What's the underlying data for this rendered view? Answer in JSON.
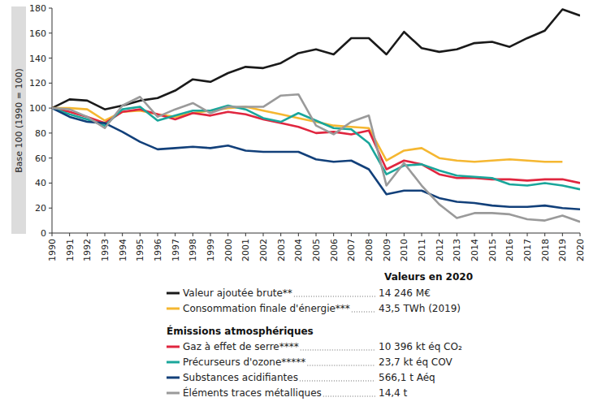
{
  "chart_data": {
    "type": "line",
    "y_label": "Base 100 (1990 = 100)",
    "legend_title": "Valeurs en 2020",
    "x": [
      1990,
      1991,
      1992,
      1993,
      1994,
      1995,
      1996,
      1997,
      1998,
      1999,
      2000,
      2001,
      2002,
      2003,
      2004,
      2005,
      2006,
      2007,
      2008,
      2009,
      2010,
      2011,
      2012,
      2013,
      2014,
      2015,
      2016,
      2017,
      2018,
      2019,
      2020
    ],
    "xlim": [
      1990,
      2020
    ],
    "xticks": [
      1990,
      1991,
      1992,
      1993,
      1994,
      1995,
      1996,
      1997,
      1998,
      1999,
      2000,
      2001,
      2002,
      2003,
      2004,
      2005,
      2006,
      2007,
      2008,
      2009,
      2010,
      2011,
      2012,
      2013,
      2014,
      2015,
      2016,
      2017,
      2018,
      2019,
      2020
    ],
    "ylim": [
      0,
      180
    ],
    "yticks": [
      0,
      20,
      40,
      60,
      80,
      100,
      120,
      140,
      160,
      180
    ],
    "grid": false,
    "legend": "bottom",
    "series": [
      {
        "name": "Valeur ajoutée brute**",
        "legend_value": "14 246 M€",
        "color": "#1a1a1a",
        "values": [
          100,
          107,
          106,
          99,
          102,
          106,
          108,
          114,
          123,
          121,
          128,
          133,
          132,
          136,
          144,
          147,
          143,
          156,
          156,
          143,
          161,
          148,
          145,
          147,
          152,
          153,
          149,
          156,
          162,
          179,
          174
        ]
      },
      {
        "name": "Consommation finale d'énergie***",
        "legend_value": "43,5 TWh (2019)",
        "color": "#f5b731",
        "values": [
          100,
          100,
          99,
          90,
          97,
          98,
          95,
          93,
          96,
          98,
          100,
          101,
          98,
          95,
          92,
          89,
          86,
          85,
          84,
          58,
          66,
          68,
          60,
          58,
          57,
          58,
          59,
          58,
          57,
          57,
          null
        ]
      },
      {
        "name": "Gaz à effet de serre****",
        "legend_value": "10 396 kt éq CO₂",
        "color": "#e0263f",
        "group": "Émissions atmosphériques",
        "values": [
          100,
          97,
          93,
          88,
          97,
          99,
          95,
          91,
          96,
          94,
          97,
          95,
          91,
          88,
          85,
          80,
          81,
          79,
          82,
          51,
          58,
          55,
          47,
          44,
          44,
          43,
          43,
          42,
          43,
          43,
          40
        ]
      },
      {
        "name": "Précurseurs d'ozone*****",
        "legend_value": "23,7 kt éq COV",
        "color": "#1aa69b",
        "group": "Émissions atmosphériques",
        "values": [
          100,
          95,
          91,
          86,
          99,
          101,
          90,
          94,
          98,
          98,
          102,
          99,
          92,
          89,
          96,
          90,
          84,
          83,
          72,
          47,
          54,
          55,
          50,
          46,
          45,
          44,
          39,
          38,
          40,
          38,
          35
        ]
      },
      {
        "name": "Substances acidifiantes",
        "legend_value": "566,1 t Aéq",
        "color": "#12407a",
        "group": "Émissions atmosphériques",
        "values": [
          100,
          93,
          89,
          88,
          81,
          73,
          67,
          68,
          69,
          68,
          70,
          66,
          65,
          65,
          65,
          59,
          57,
          58,
          51,
          31,
          34,
          34,
          28,
          25,
          24,
          22,
          21,
          21,
          22,
          20,
          19
        ]
      },
      {
        "name": "Éléments traces métalliques",
        "legend_value": "14,4 t",
        "color": "#9a9a9a",
        "group": "Émissions atmosphériques",
        "values": [
          100,
          99,
          93,
          84,
          102,
          109,
          93,
          99,
          104,
          96,
          101,
          101,
          101,
          110,
          111,
          86,
          79,
          89,
          94,
          38,
          56,
          38,
          23,
          12,
          16,
          16,
          15,
          11,
          10,
          14,
          9
        ]
      }
    ]
  }
}
